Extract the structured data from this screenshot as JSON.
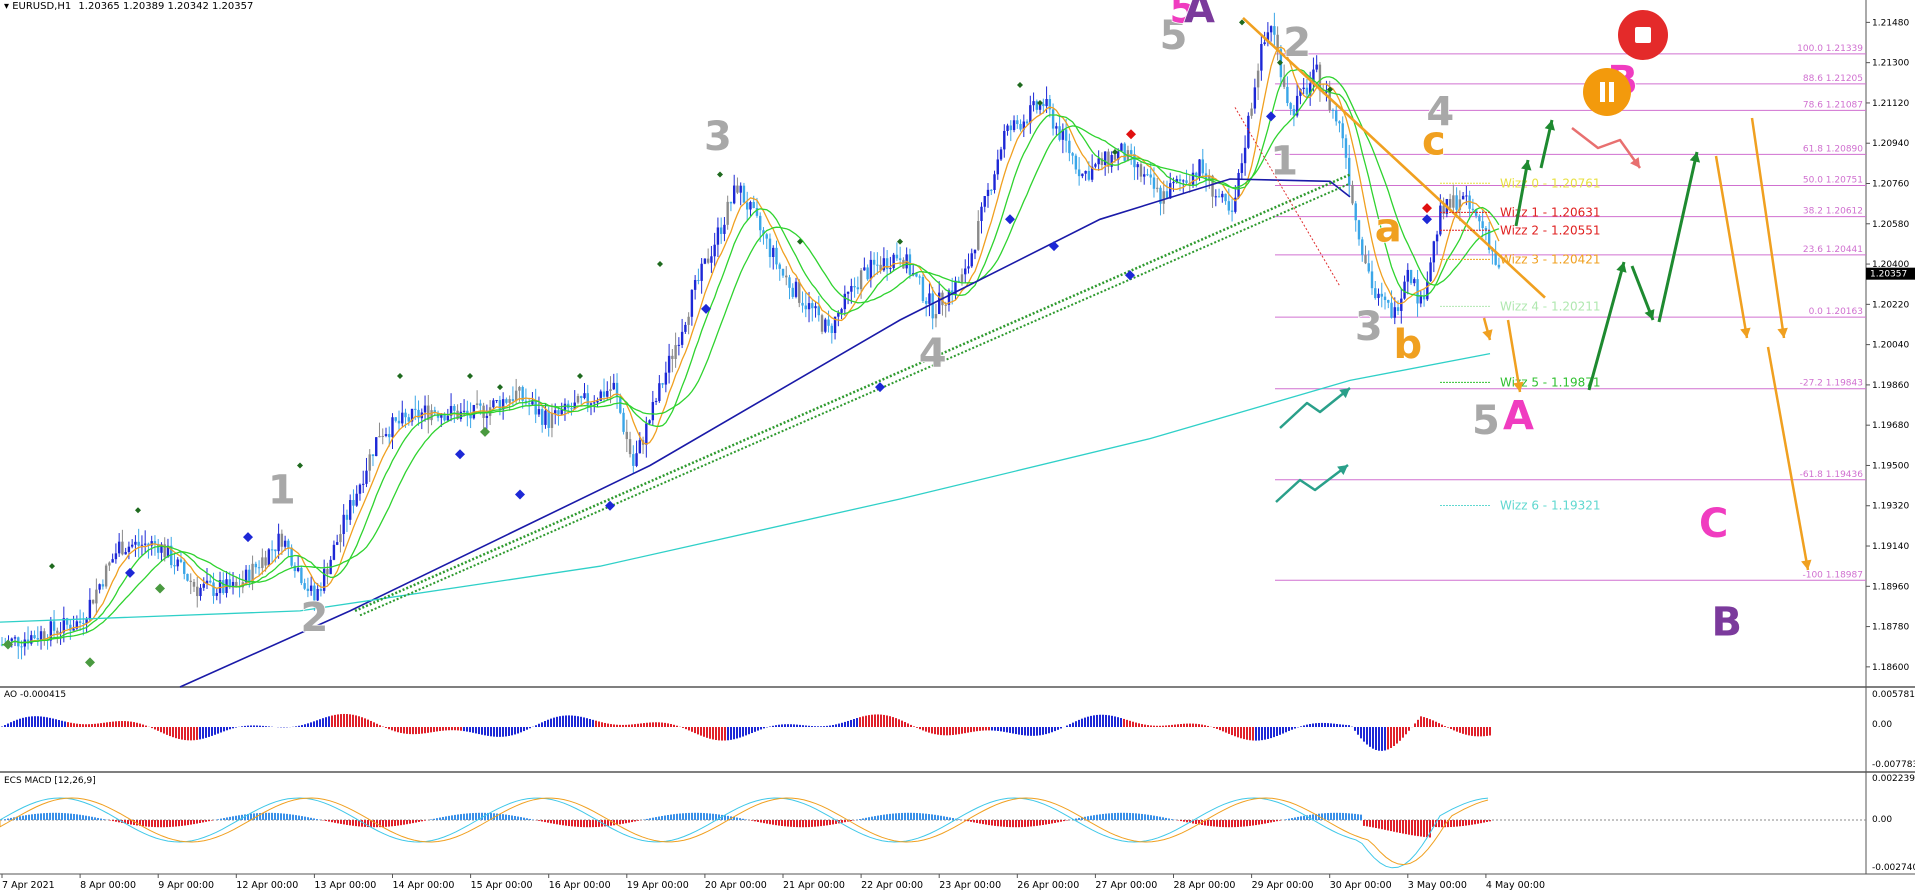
{
  "header": {
    "symbol": "EURUSD,H1",
    "ohlc": "1.20365 1.20389 1.20342 1.20357"
  },
  "colors": {
    "bull_candle": "#1d28d6",
    "bear_candle": "#3aa6e8",
    "neutral_candle": "#8a8a8a",
    "ma_fast": "#2fd32f",
    "ma_slow": "#f0a020",
    "ma_100": "#1a1aa8",
    "ma_200": "#2fd0c8",
    "trendline_green": "#2e9a2e",
    "fib": "#d070d0",
    "wave_grey": "#a8a8a8",
    "wave_pink": "#f03cc0",
    "wave_purple": "#7b3a9c",
    "wave_orange": "#f0a020",
    "arrow_green": "#1e8a30",
    "arrow_orange": "#f0a020",
    "arrow_red": "#e87070",
    "arrow_teal": "#2aa08a",
    "ao_up": "#1d28d6",
    "ao_down": "#e0202a",
    "macd_up": "#3a90e8",
    "macd_down": "#e0202a"
  },
  "price_axis": {
    "labels": [
      "1.21480",
      "1.21300",
      "1.21120",
      "1.20940",
      "1.20760",
      "1.20580",
      "1.20400",
      "1.20220",
      "1.20040",
      "1.19860",
      "1.19680",
      "1.19500",
      "1.19320",
      "1.19140",
      "1.18960",
      "1.18780",
      "1.18600"
    ],
    "current": "1.20357"
  },
  "time_axis": [
    "7 Apr 2021",
    "8 Apr 00:00",
    "9 Apr 00:00",
    "12 Apr 00:00",
    "13 Apr 00:00",
    "14 Apr 00:00",
    "15 Apr 00:00",
    "16 Apr 00:00",
    "19 Apr 00:00",
    "20 Apr 00:00",
    "21 Apr 00:00",
    "22 Apr 00:00",
    "23 Apr 00:00",
    "26 Apr 00:00",
    "27 Apr 00:00",
    "28 Apr 00:00",
    "29 Apr 00:00",
    "30 Apr 00:00",
    "3 May 00:00",
    "4 May 00:00"
  ],
  "fib_levels": [
    {
      "label": "100.0 1.21339",
      "price": 1.21339
    },
    {
      "label": "88.6 1.21205",
      "price": 1.21205
    },
    {
      "label": "78.6 1.21087",
      "price": 1.21087
    },
    {
      "label": "61.8 1.20890",
      "price": 1.2089
    },
    {
      "label": "50.0 1.20751",
      "price": 1.20751
    },
    {
      "label": "38.2 1.20612",
      "price": 1.20612
    },
    {
      "label": "23.6 1.20441",
      "price": 1.20441
    },
    {
      "label": "0.0 1.20163",
      "price": 1.20163
    },
    {
      "label": "-27.2 1.19843",
      "price": 1.19843
    },
    {
      "label": "-61.8 1.19436",
      "price": 1.19436
    },
    {
      "label": "-100 1.18987",
      "price": 1.18987
    }
  ],
  "wizz_levels": [
    {
      "label": "Wizz 0 - 1.20761",
      "price": 1.20761,
      "color": "#e8e040"
    },
    {
      "label": "Wizz 1 - 1.20631",
      "price": 1.20631,
      "color": "#e02020"
    },
    {
      "label": "Wizz 2 - 1.20551",
      "price": 1.20551,
      "color": "#e02020"
    },
    {
      "label": "Wizz 3 - 1.20421",
      "price": 1.20421,
      "color": "#f0a020"
    },
    {
      "label": "Wizz 4 - 1.20211",
      "price": 1.20211,
      "color": "#b0e8b0"
    },
    {
      "label": "Wizz 5 - 1.19871",
      "price": 1.19871,
      "color": "#30c030"
    },
    {
      "label": "Wizz 6 - 1.19321",
      "price": 1.19321,
      "color": "#60d8d0"
    }
  ],
  "wave_labels": [
    {
      "text": "1",
      "color": "grey",
      "x_time": "12 Apr 14:00",
      "price": 1.1933
    },
    {
      "text": "2",
      "color": "grey",
      "x_time": "13 Apr 00:00",
      "price": 1.1876
    },
    {
      "text": "3",
      "color": "grey",
      "x_time": "20 Apr 04:00",
      "price": 1.2091
    },
    {
      "text": "4",
      "color": "grey",
      "x_time": "22 Apr 22:00",
      "price": 1.1994
    },
    {
      "text": "5",
      "color": "grey",
      "x_time": "28 Apr 00:00",
      "price": 1.2136
    },
    {
      "text": "5",
      "color": "pink",
      "x_time": "28 Apr 03:00",
      "price": 1.2148
    },
    {
      "text": "A",
      "color": "purple",
      "x_time": "28 Apr 08:00",
      "price": 1.2148
    },
    {
      "text": "2",
      "color": "grey",
      "x_time": "29 Apr 14:00",
      "price": 1.2133
    },
    {
      "text": "1",
      "color": "grey",
      "x_time": "29 Apr 10:00",
      "price": 1.208
    },
    {
      "text": "3",
      "color": "grey",
      "x_time": "30 Apr 12:00",
      "price": 1.2006
    },
    {
      "text": "4",
      "color": "grey",
      "x_time": "3 May 10:00",
      "price": 1.2102
    },
    {
      "text": "c",
      "color": "orange",
      "x_time": "3 May 08:00",
      "price": 1.2089
    },
    {
      "text": "a",
      "color": "orange",
      "x_time": "30 Apr 18:00",
      "price": 1.205
    },
    {
      "text": "b",
      "color": "orange",
      "x_time": "3 May 00:00",
      "price": 1.1998
    },
    {
      "text": "5",
      "color": "grey",
      "x_time": "4 May 00:00",
      "price": 1.1964
    },
    {
      "text": "A",
      "color": "pink",
      "x_time": "4 May 10:00",
      "price": 1.1966
    },
    {
      "text": "B",
      "color": "pink",
      "x_time": "5 May 18:00",
      "price": 1.2116
    },
    {
      "text": "C",
      "color": "pink",
      "x_time": "6 May 22:00",
      "price": 1.1918
    },
    {
      "text": "B",
      "color": "purple",
      "x_time": "7 May 02:00",
      "price": 1.1874
    }
  ],
  "ao": {
    "label": "AO -0.000415",
    "scale": [
      "0.005781",
      "0.00",
      "-0.007783"
    ]
  },
  "macd": {
    "label": "ECS MACD [12,26,9]",
    "scale": [
      "0.0022392",
      "0.00",
      "-0.0027400"
    ]
  },
  "chart_data": {
    "type": "candlestick",
    "symbol": "EURUSD",
    "timeframe": "H1",
    "ylim": [
      1.1851,
      1.2158
    ],
    "key_points": [
      {
        "time": "7 Apr 00:00",
        "price": 1.187
      },
      {
        "time": "8 Apr 00:00",
        "price": 1.188
      },
      {
        "time": "8 Apr 12:00",
        "price": 1.1914
      },
      {
        "time": "9 Apr 00:00",
        "price": 1.1915
      },
      {
        "time": "9 Apr 12:00",
        "price": 1.1895
      },
      {
        "time": "12 Apr 00:00",
        "price": 1.1895
      },
      {
        "time": "12 Apr 14:00",
        "price": 1.1918
      },
      {
        "time": "13 Apr 00:00",
        "price": 1.189
      },
      {
        "time": "13 Apr 20:00",
        "price": 1.1965
      },
      {
        "time": "14 Apr 12:00",
        "price": 1.1975
      },
      {
        "time": "15 Apr 00:00",
        "price": 1.1972
      },
      {
        "time": "15 Apr 14:00",
        "price": 1.1982
      },
      {
        "time": "16 Apr 00:00",
        "price": 1.197
      },
      {
        "time": "16 Apr 20:00",
        "price": 1.1985
      },
      {
        "time": "19 Apr 02:00",
        "price": 1.195
      },
      {
        "time": "19 Apr 20:00",
        "price": 1.2025
      },
      {
        "time": "20 Apr 10:00",
        "price": 1.2075
      },
      {
        "time": "21 Apr 00:00",
        "price": 1.2035
      },
      {
        "time": "21 Apr 14:00",
        "price": 1.201
      },
      {
        "time": "22 Apr 00:00",
        "price": 1.2035
      },
      {
        "time": "22 Apr 12:00",
        "price": 1.2045
      },
      {
        "time": "22 Apr 22:00",
        "price": 1.202
      },
      {
        "time": "23 Apr 08:00",
        "price": 1.2035
      },
      {
        "time": "23 Apr 20:00",
        "price": 1.2098
      },
      {
        "time": "26 Apr 08:00",
        "price": 1.2112
      },
      {
        "time": "26 Apr 20:00",
        "price": 1.208
      },
      {
        "time": "27 Apr 08:00",
        "price": 1.209
      },
      {
        "time": "27 Apr 20:00",
        "price": 1.207
      },
      {
        "time": "28 Apr 08:00",
        "price": 1.2083
      },
      {
        "time": "28 Apr 18:00",
        "price": 1.206
      },
      {
        "time": "29 Apr 02:00",
        "price": 1.213
      },
      {
        "time": "29 Apr 06:00",
        "price": 1.2148
      },
      {
        "time": "29 Apr 12:00",
        "price": 1.2108
      },
      {
        "time": "29 Apr 20:00",
        "price": 1.2125
      },
      {
        "time": "30 Apr 04:00",
        "price": 1.2098
      },
      {
        "time": "30 Apr 08:00",
        "price": 1.206
      },
      {
        "time": "30 Apr 14:00",
        "price": 1.2025
      },
      {
        "time": "30 Apr 20:00",
        "price": 1.2018
      },
      {
        "time": "3 May 00:00",
        "price": 1.204
      },
      {
        "time": "3 May 04:00",
        "price": 1.2022
      },
      {
        "time": "3 May 10:00",
        "price": 1.2062
      },
      {
        "time": "3 May 16:00",
        "price": 1.207
      },
      {
        "time": "4 May 00:00",
        "price": 1.2055
      },
      {
        "time": "4 May 04:00",
        "price": 1.2036
      }
    ],
    "tick_labels_x": [
      "7 Apr 2021",
      "8 Apr 00:00",
      "9 Apr 00:00",
      "12 Apr 00:00",
      "13 Apr 00:00",
      "14 Apr 00:00",
      "15 Apr 00:00",
      "16 Apr 00:00",
      "19 Apr 00:00",
      "20 Apr 00:00",
      "21 Apr 00:00",
      "22 Apr 00:00",
      "23 Apr 00:00",
      "26 Apr 00:00",
      "27 Apr 00:00",
      "28 Apr 00:00",
      "29 Apr 00:00",
      "30 Apr 00:00",
      "3 May 00:00",
      "4 May 00:00"
    ],
    "tick_labels_y": [
      "1.21480",
      "1.21300",
      "1.21120",
      "1.20940",
      "1.20760",
      "1.20580",
      "1.20400",
      "1.20220",
      "1.20040",
      "1.19860",
      "1.19680",
      "1.19500",
      "1.19320",
      "1.19140",
      "1.18960",
      "1.18780",
      "1.18600"
    ],
    "grid": false
  }
}
